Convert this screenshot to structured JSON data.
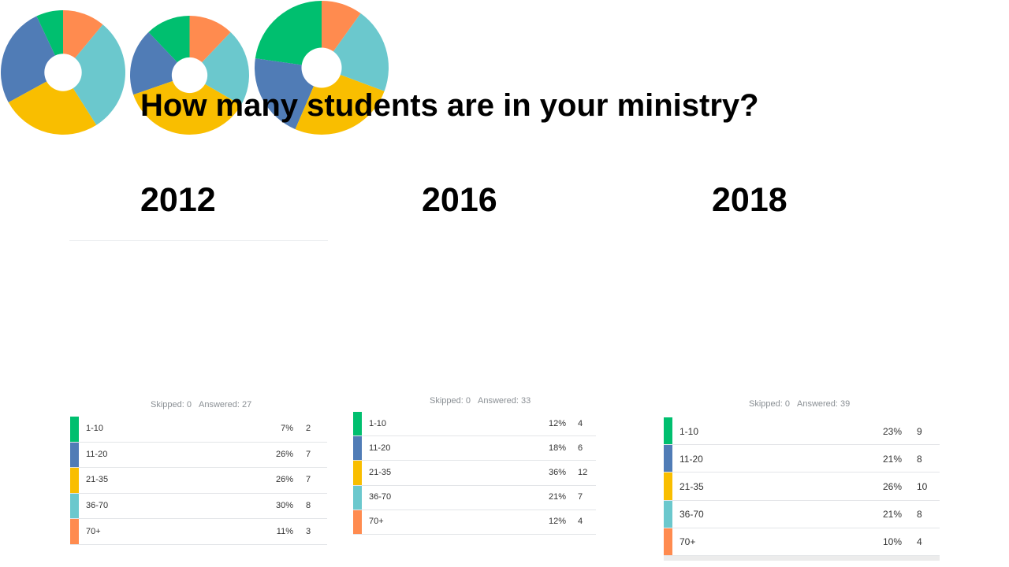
{
  "title": "How many students are in your ministry?",
  "colors": [
    "#00bf6f",
    "#507cb6",
    "#f9be00",
    "#6bc8cd",
    "#ff8b4f"
  ],
  "chart_data": [
    {
      "type": "pie",
      "title": "2012",
      "categories": [
        "1-10",
        "11-20",
        "21-35",
        "36-70",
        "70+"
      ],
      "percent_labels": [
        "7%",
        "26%",
        "26%",
        "30%",
        "11%"
      ],
      "values": [
        7,
        26,
        26,
        30,
        11
      ],
      "counts": [
        2,
        7,
        7,
        8,
        3
      ],
      "skipped": "Skipped: 0",
      "answered": "Answered: 27"
    },
    {
      "type": "pie",
      "title": "2016",
      "categories": [
        "1-10",
        "11-20",
        "21-35",
        "36-70",
        "70+"
      ],
      "percent_labels": [
        "12%",
        "18%",
        "36%",
        "21%",
        "12%"
      ],
      "values": [
        12,
        18,
        36,
        21,
        12
      ],
      "counts": [
        4,
        6,
        12,
        7,
        4
      ],
      "skipped": "Skipped: 0",
      "answered": "Answered: 33"
    },
    {
      "type": "pie",
      "title": "2018",
      "categories": [
        "1-10",
        "11-20",
        "21-35",
        "36-70",
        "70+"
      ],
      "percent_labels": [
        "23%",
        "21%",
        "26%",
        "21%",
        "10%"
      ],
      "values": [
        23,
        21,
        26,
        21,
        10
      ],
      "counts": [
        9,
        8,
        10,
        8,
        4
      ],
      "skipped": "Skipped: 0",
      "answered": "Answered: 39"
    }
  ]
}
